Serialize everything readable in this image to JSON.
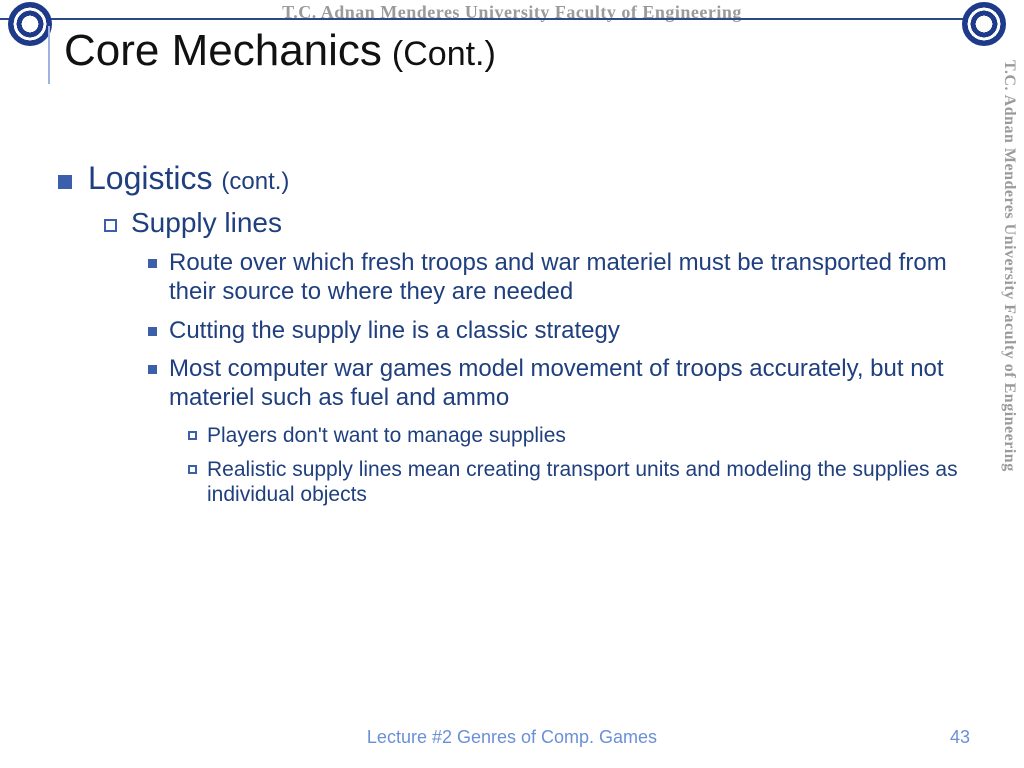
{
  "colors": {
    "text_body": "#1f3f7f",
    "title_text": "#111111",
    "bullet": "#3b5fab",
    "rule": "#2a4a8a",
    "watermark": "#9a9a9a",
    "footer": "#6b8fd6",
    "title_accent_border": "#9fb3e0",
    "background": "#ffffff"
  },
  "fonts": {
    "title_pt": 44,
    "title_cont_pt": 34,
    "lvl1_pt": 32,
    "lvl1_sub_pt": 24,
    "lvl2_pt": 28,
    "lvl3_pt": 24,
    "lvl4_pt": 21,
    "footer_pt": 18,
    "watermark_pt": 18
  },
  "header": {
    "watermark": "T.C.    Adnan Menderes University    Faculty of Engineering"
  },
  "sidebar": {
    "watermark": "T.C.    Adnan Menderes University    Faculty of Engineering"
  },
  "title": {
    "main": "Core Mechanics",
    "cont": "(Cont.)"
  },
  "content": {
    "lvl1": {
      "text": "Logistics",
      "sub": "(cont.)"
    },
    "lvl2": {
      "text": "Supply lines"
    },
    "lvl3": [
      "Route over which fresh troops and war materiel must be transported from their source to where they are needed",
      "Cutting the supply line is a classic strategy",
      "Most computer war games model movement of troops accurately, but not materiel such as fuel and ammo"
    ],
    "lvl4": [
      "Players don't want to manage supplies",
      "Realistic supply lines mean creating transport units and modeling the supplies as individual objects"
    ]
  },
  "footer": {
    "text": "Lecture #2  Genres of Comp. Games",
    "page": "43"
  }
}
